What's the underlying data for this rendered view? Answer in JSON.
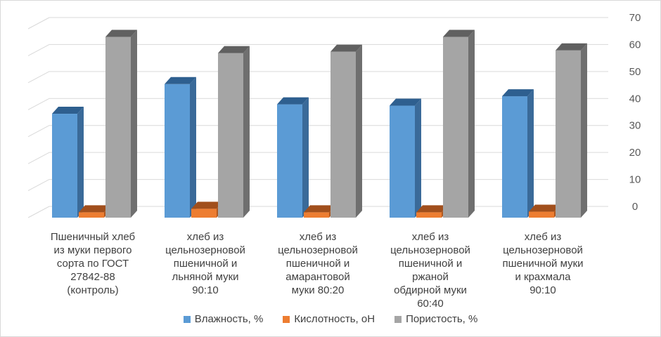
{
  "chart_data": {
    "type": "bar",
    "three_d": true,
    "categories": [
      [
        "Пшеничный хлеб",
        "из муки первого",
        "сорта по ГОСТ",
        "27842-88",
        "(контроль)"
      ],
      [
        "хлеб из",
        "цельнозерновой",
        "пшеничной и",
        "льняной муки",
        "90:10"
      ],
      [
        "хлеб из",
        "цельнозерновой",
        "пшеничной и",
        "амарантовой",
        "муки 80:20"
      ],
      [
        "хлеб из",
        "цельнозерновой",
        "пшеничной и",
        "ржаной",
        "обдирной муки",
        "60:40"
      ],
      [
        "хлеб из",
        "цельнозерновой",
        "пшеничной муки",
        "и крахмала",
        "90:10"
      ]
    ],
    "series": [
      {
        "name": "Влажность, %",
        "color": "#5b9bd5",
        "side": "#3a6a99",
        "top": "#2e5f8f",
        "values": [
          38.5,
          49.5,
          42,
          41.5,
          45
        ]
      },
      {
        "name": "Кислотность, оН",
        "color": "#ed7d31",
        "side": "#b0581f",
        "top": "#a14f1c",
        "values": [
          2,
          3.3,
          2,
          2,
          2.2
        ]
      },
      {
        "name": "Пористость, %",
        "color": "#a5a5a5",
        "side": "#6f6f6f",
        "top": "#606060",
        "values": [
          67,
          61,
          61.5,
          67,
          62
        ]
      }
    ],
    "y_ticks": [
      "0",
      "10",
      "20",
      "30",
      "40",
      "50",
      "60",
      "70"
    ],
    "ylim": [
      0,
      70
    ],
    "gridlines": true,
    "legend_position": "bottom"
  }
}
